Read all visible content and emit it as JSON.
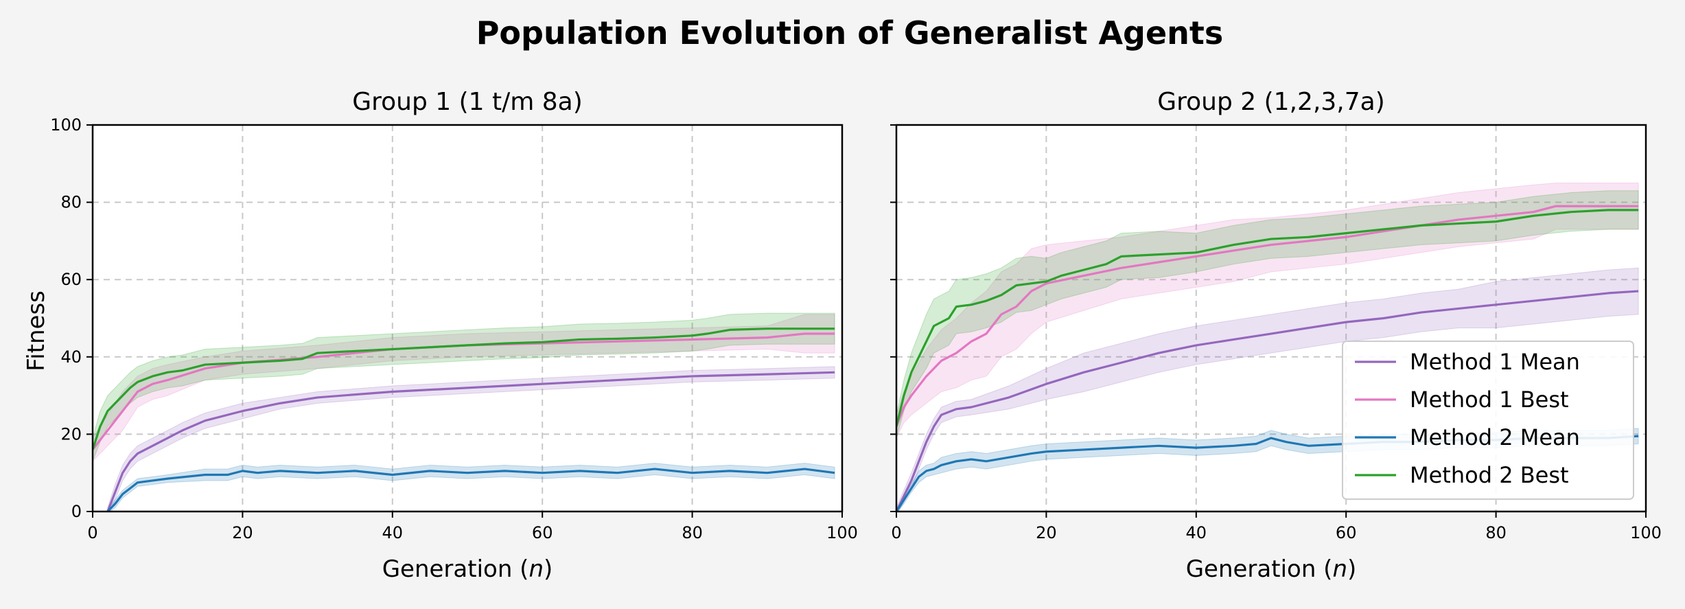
{
  "figure": {
    "title": "Population Evolution of Generalist Agents",
    "ylabel": "Fitness"
  },
  "colors": {
    "Method 1 Mean": "#9467bd",
    "Method 1 Best": "#e377c2",
    "Method 2 Mean": "#1f77b4",
    "Method 2 Best": "#2ca02c",
    "background": "#f4f4f4"
  },
  "chart_data": [
    {
      "type": "line",
      "title": "Group 1 (1 t/m 8a)",
      "xlabel": "Generation (n)",
      "ylabel": "Fitness",
      "xlim": [
        0,
        100
      ],
      "ylim": [
        0,
        100
      ],
      "xticks": [
        0,
        20,
        40,
        60,
        80,
        100
      ],
      "yticks": [
        0,
        20,
        40,
        60,
        80,
        100
      ],
      "grid": true,
      "legend": "none",
      "shaded_band": "spread around each series",
      "series": [
        {
          "name": "Method 1 Mean",
          "x": [
            2,
            3,
            4,
            5,
            6,
            8,
            10,
            12,
            15,
            20,
            25,
            30,
            40,
            50,
            60,
            70,
            80,
            90,
            99
          ],
          "y": [
            0,
            5,
            10,
            13,
            15,
            17,
            19,
            21,
            23.5,
            26,
            28,
            29.5,
            31,
            32,
            33,
            34,
            35,
            35.5,
            36
          ],
          "band": [
            1,
            2,
            2,
            2,
            2,
            2,
            2,
            2,
            2,
            2,
            1.5,
            1.5,
            1.5,
            1.5,
            1.5,
            1.5,
            1.5,
            1.5,
            1.5
          ]
        },
        {
          "name": "Method 1 Best",
          "x": [
            0,
            2,
            4,
            6,
            8,
            10,
            15,
            20,
            30,
            40,
            50,
            60,
            70,
            80,
            90,
            95,
            99
          ],
          "y": [
            16,
            21,
            26,
            31,
            33,
            34,
            37,
            38.5,
            40,
            42,
            43,
            43.5,
            44,
            44.5,
            45,
            46,
            46
          ],
          "band": [
            3,
            4,
            5,
            4,
            4,
            4,
            3,
            3,
            3,
            3,
            3,
            3,
            3,
            3,
            3,
            5,
            5
          ]
        },
        {
          "name": "Method 2 Mean",
          "x": [
            2,
            3,
            4,
            5,
            6,
            8,
            10,
            15,
            18,
            20,
            22,
            25,
            30,
            35,
            40,
            45,
            50,
            55,
            60,
            65,
            70,
            75,
            80,
            85,
            90,
            95,
            99
          ],
          "y": [
            0,
            2,
            4.5,
            6,
            7.5,
            8,
            8.5,
            9.5,
            9.5,
            10.5,
            10,
            10.5,
            10,
            10.5,
            9.5,
            10.5,
            10,
            10.5,
            10,
            10.5,
            10,
            11,
            10,
            10.5,
            10,
            11,
            10
          ],
          "band": [
            0.5,
            1,
            1,
            1,
            1,
            1,
            1,
            1.5,
            1.5,
            1.5,
            1.5,
            1.5,
            1.5,
            1.5,
            1.5,
            1.5,
            1.5,
            1.5,
            1.5,
            1.5,
            1.5,
            1.5,
            1.5,
            1.5,
            1.5,
            1.5,
            1.5
          ]
        },
        {
          "name": "Method 2 Best",
          "x": [
            0,
            1,
            2,
            4,
            5,
            6,
            8,
            10,
            12,
            15,
            20,
            25,
            28,
            30,
            35,
            40,
            45,
            50,
            55,
            60,
            65,
            70,
            75,
            80,
            82,
            85,
            90,
            99
          ],
          "y": [
            16,
            22,
            26,
            30,
            32,
            33.5,
            35,
            36,
            36.5,
            38,
            38.5,
            39,
            39.5,
            41,
            41.5,
            42,
            42.5,
            43,
            43.5,
            43.8,
            44.5,
            44.7,
            45,
            45.5,
            46,
            47,
            47.3,
            47.3
          ],
          "band": [
            3,
            4,
            4,
            4,
            4,
            4,
            4,
            4,
            4,
            4,
            4,
            4,
            4,
            4,
            4,
            4,
            4,
            4,
            4,
            4,
            4,
            4,
            4,
            4,
            4,
            4,
            4,
            4
          ]
        }
      ]
    },
    {
      "type": "line",
      "title": "Group 2 (1,2,3,7a)",
      "xlabel": "Generation (n)",
      "ylabel": "",
      "xlim": [
        0,
        100
      ],
      "ylim": [
        0,
        100
      ],
      "xticks": [
        0,
        20,
        40,
        60,
        80,
        100
      ],
      "yticks": [
        0,
        20,
        40,
        60,
        80,
        100
      ],
      "grid": true,
      "legend": "bottom-right",
      "shaded_band": "spread around each series",
      "series": [
        {
          "name": "Method 1 Mean",
          "x": [
            0,
            2,
            3,
            4,
            5,
            6,
            8,
            10,
            15,
            20,
            25,
            30,
            35,
            40,
            45,
            50,
            55,
            60,
            65,
            70,
            75,
            80,
            85,
            90,
            95,
            99
          ],
          "y": [
            0,
            8,
            13,
            18,
            22,
            25,
            26.5,
            27,
            29.5,
            33,
            36,
            38.5,
            41,
            43,
            44.5,
            46,
            47.5,
            49,
            50,
            51.5,
            52.5,
            53.5,
            54.5,
            55.5,
            56.5,
            57
          ],
          "band": [
            1,
            2,
            2,
            2,
            2,
            2,
            2,
            2,
            3,
            4,
            5,
            5,
            5,
            5,
            5,
            5,
            5,
            5,
            5,
            5,
            5,
            6,
            6,
            6,
            6,
            6
          ]
        },
        {
          "name": "Method 1 Best",
          "x": [
            0,
            1,
            2,
            4,
            6,
            8,
            10,
            12,
            14,
            16,
            18,
            20,
            25,
            30,
            35,
            40,
            45,
            50,
            55,
            60,
            65,
            70,
            75,
            80,
            85,
            88,
            90,
            99
          ],
          "y": [
            22,
            27,
            30,
            35,
            39,
            41,
            44,
            46,
            51,
            53,
            57,
            59,
            61,
            63,
            64.5,
            66,
            67.5,
            69,
            70,
            71,
            72.5,
            74,
            75.5,
            76.5,
            77.5,
            79,
            79,
            79
          ],
          "band": [
            3,
            4,
            5,
            7,
            8,
            9,
            10,
            11,
            11,
            11,
            11,
            10,
            9,
            8,
            8,
            8,
            8,
            7,
            7,
            7,
            7,
            7,
            7,
            7,
            7,
            6,
            6,
            6
          ]
        },
        {
          "name": "Method 2 Mean",
          "x": [
            0,
            1,
            2,
            3,
            4,
            5,
            6,
            8,
            10,
            12,
            15,
            18,
            20,
            25,
            30,
            35,
            40,
            45,
            48,
            50,
            52,
            55,
            60,
            65,
            70,
            75,
            80,
            85,
            90,
            95,
            99
          ],
          "y": [
            0,
            3,
            6,
            9,
            10.5,
            11,
            12,
            13,
            13.5,
            13,
            14,
            15,
            15.5,
            16,
            16.5,
            17,
            16.5,
            17,
            17.5,
            19,
            18,
            17,
            17.5,
            18,
            18,
            18.5,
            18.5,
            19,
            19,
            19,
            19.5
          ],
          "band": [
            0.5,
            1,
            1,
            1.5,
            1.5,
            1.5,
            2,
            2,
            2,
            2,
            2,
            2,
            2,
            2,
            2,
            2,
            2,
            2,
            2,
            2,
            2,
            2,
            2,
            2,
            2,
            2,
            2,
            2,
            2,
            2,
            2
          ]
        },
        {
          "name": "Method 2 Best",
          "x": [
            0,
            1,
            2,
            3,
            4,
            5,
            6,
            7,
            8,
            10,
            12,
            14,
            16,
            18,
            20,
            22,
            25,
            28,
            30,
            35,
            40,
            45,
            50,
            55,
            60,
            65,
            70,
            75,
            80,
            85,
            90,
            95,
            99
          ],
          "y": [
            22,
            30,
            36,
            40,
            44,
            48,
            49,
            50,
            53,
            53.5,
            54.5,
            56,
            58.5,
            59,
            59.5,
            61,
            62.5,
            64,
            66,
            66.5,
            67,
            69,
            70.5,
            71,
            72,
            73,
            74,
            74.5,
            75,
            76.5,
            77.5,
            78,
            78
          ],
          "band": [
            3,
            4,
            5,
            6,
            7,
            7,
            7,
            7,
            7,
            7,
            7,
            7,
            7,
            7,
            6,
            6,
            6,
            6,
            6,
            6,
            5,
            5,
            5,
            5,
            5,
            5,
            5,
            5,
            5,
            5,
            5,
            5,
            5
          ]
        }
      ]
    }
  ]
}
